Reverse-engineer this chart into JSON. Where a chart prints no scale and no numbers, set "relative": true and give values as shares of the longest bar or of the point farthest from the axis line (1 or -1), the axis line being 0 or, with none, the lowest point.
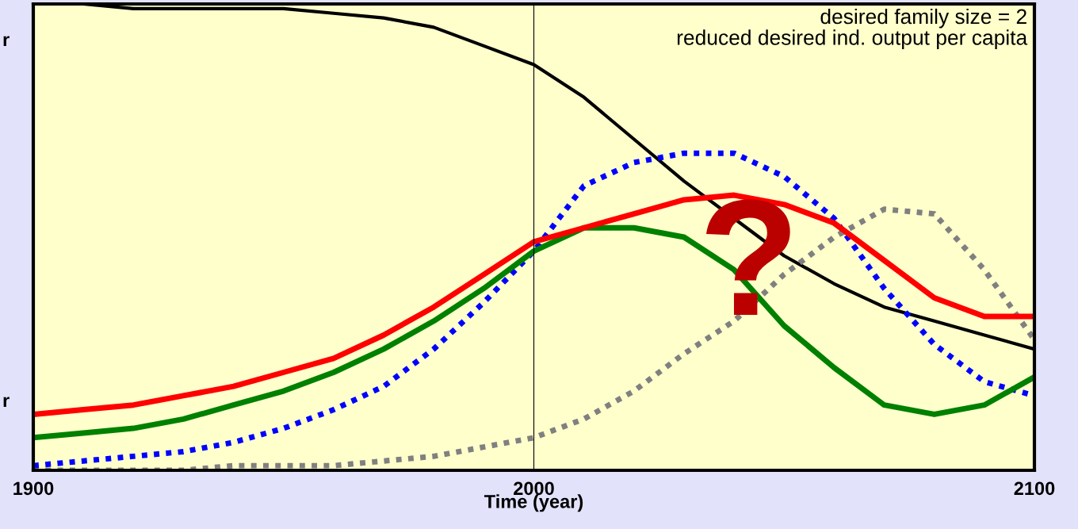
{
  "chart_data": {
    "type": "line",
    "relative": true,
    "xlabel": "Time (year)",
    "x": [
      1900,
      1910,
      1920,
      1930,
      1940,
      1950,
      1960,
      1970,
      1980,
      1990,
      2000,
      2010,
      2020,
      2030,
      2040,
      2050,
      2060,
      2070,
      2080,
      2090,
      2100
    ],
    "xlim": [
      1900,
      2100
    ],
    "xticks": [
      1900,
      2000,
      2100
    ],
    "legend": false,
    "marker": "none",
    "series": [
      {
        "color": "#000000",
        "line_style": "solid",
        "values": [
          1.0,
          1.0,
          0.99,
          0.99,
          0.99,
          0.99,
          0.98,
          0.97,
          0.95,
          0.91,
          0.87,
          0.8,
          0.71,
          0.62,
          0.54,
          0.46,
          0.4,
          0.35,
          0.32,
          0.29,
          0.26
        ]
      },
      {
        "color": "#808080",
        "line_style": "dotted",
        "values": [
          0,
          0,
          0,
          0,
          0.01,
          0.01,
          0.01,
          0.02,
          0.03,
          0.05,
          0.07,
          0.11,
          0.17,
          0.25,
          0.32,
          0.42,
          0.5,
          0.56,
          0.55,
          0.43,
          0.28
        ]
      },
      {
        "color": "#0000ff",
        "line_style": "dotted",
        "values": [
          0.01,
          0.02,
          0.03,
          0.04,
          0.06,
          0.09,
          0.13,
          0.18,
          0.26,
          0.36,
          0.47,
          0.61,
          0.66,
          0.68,
          0.68,
          0.63,
          0.54,
          0.39,
          0.27,
          0.19,
          0.16
        ]
      },
      {
        "color": "#008000",
        "line_style": "solid",
        "values": [
          0.07,
          0.08,
          0.09,
          0.11,
          0.14,
          0.17,
          0.21,
          0.26,
          0.32,
          0.39,
          0.47,
          0.52,
          0.52,
          0.5,
          0.43,
          0.31,
          0.22,
          0.14,
          0.12,
          0.14,
          0.2
        ]
      },
      {
        "color": "#ff0000",
        "line_style": "solid",
        "values": [
          0.12,
          0.13,
          0.14,
          0.16,
          0.18,
          0.21,
          0.24,
          0.29,
          0.35,
          0.42,
          0.49,
          0.52,
          0.55,
          0.58,
          0.59,
          0.57,
          0.53,
          0.45,
          0.37,
          0.33,
          0.33
        ]
      }
    ],
    "ref_lines": [
      {
        "axis": "x",
        "value": 2000,
        "color": "#000000",
        "line_style": "solid"
      }
    ],
    "annotations": [
      "desired family size = 2",
      "reduced desired ind. output per capita",
      "r",
      "r",
      "?"
    ]
  }
}
